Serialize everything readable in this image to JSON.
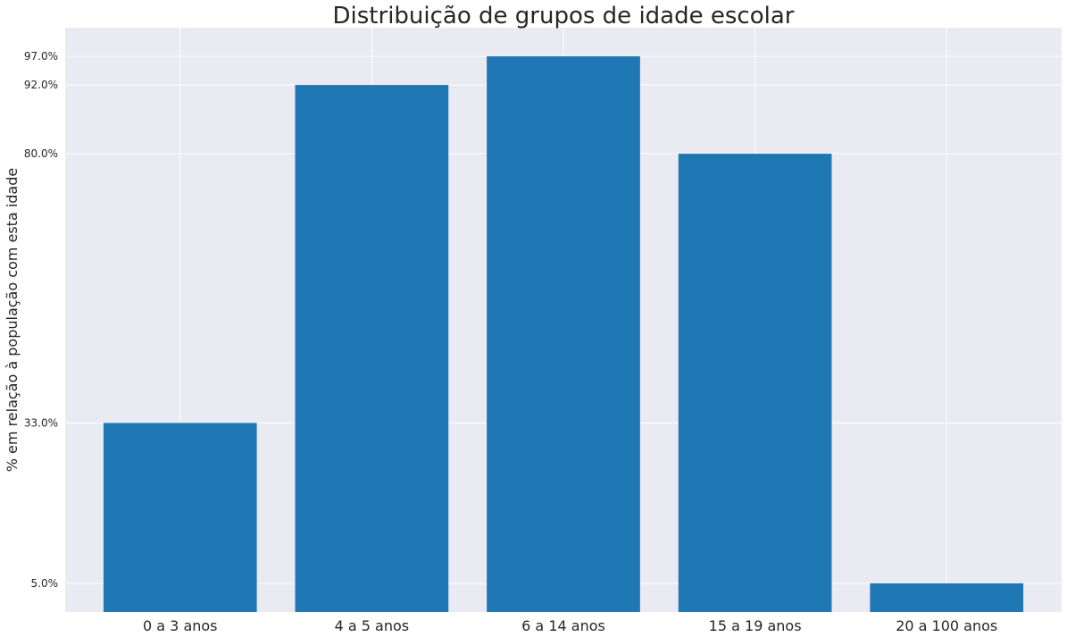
{
  "chart_data": {
    "type": "bar",
    "title": "Distribuição de grupos de idade escolar",
    "xlabel": "",
    "ylabel": "% em relação à população com esta idade",
    "categories": [
      "0 a 3 anos",
      "4 a 5 anos",
      "6 a 14 anos",
      "15 a 19 anos",
      "20 a 100 anos"
    ],
    "values": [
      33.0,
      92.0,
      97.0,
      80.0,
      5.0
    ],
    "yticks": [
      5.0,
      33.0,
      80.0,
      92.0,
      97.0
    ],
    "ytick_labels": [
      "5.0%",
      "33.0%",
      "80.0%",
      "92.0%",
      "97.0%"
    ],
    "ylim": [
      0,
      102
    ],
    "grid": true,
    "colors": {
      "bar": "#1f77b4",
      "background": "#eaeaf2",
      "grid": "#ffffff"
    }
  }
}
